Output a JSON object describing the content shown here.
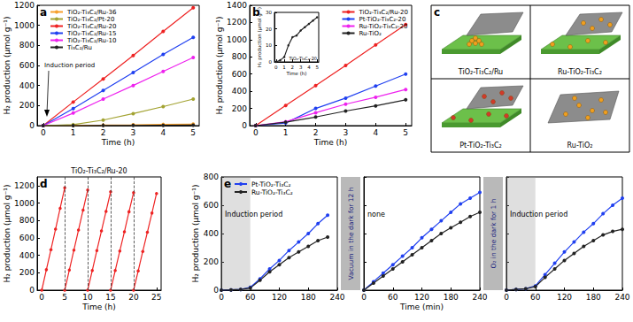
{
  "chart_data": [
    {
      "panel": "a",
      "type": "line",
      "xlabel": "Time (h)",
      "ylabel": "H₂ production (μmol g⁻¹)",
      "x": [
        0,
        1,
        2,
        3,
        4,
        5
      ],
      "xlim": [
        -0.2,
        5.2
      ],
      "xticks": [
        0,
        1,
        2,
        3,
        4,
        5
      ],
      "ylim": [
        0,
        1200
      ],
      "yticks": [
        0,
        200,
        400,
        600,
        800,
        1000,
        1200
      ],
      "grid": false,
      "legend": "upper left",
      "marker": "circle",
      "annotation": "Induction period",
      "series": [
        {
          "name": "TiO₂-Ti₃C₂/Ru-36",
          "color": "#f7a02c",
          "values": [
            0,
            3,
            5,
            8,
            12,
            15
          ]
        },
        {
          "name": "TiO₂-Ti₃C₂/Pt-20",
          "color": "#a3a332",
          "values": [
            0,
            10,
            55,
            120,
            190,
            265
          ]
        },
        {
          "name": "TiO₂-Ti₃C₂/Ru-20",
          "color": "#ee2222",
          "values": [
            0,
            235,
            465,
            700,
            940,
            1175
          ]
        },
        {
          "name": "TiO₂-Ti₃C₂/Ru-15",
          "color": "#2040f0",
          "values": [
            0,
            170,
            350,
            530,
            710,
            880
          ]
        },
        {
          "name": "TiO₂-Ti₃C₂/Ru-10",
          "color": "#ee22ee",
          "values": [
            0,
            125,
            265,
            400,
            540,
            680
          ]
        },
        {
          "name": "Ti₃C₂/Ru",
          "color": "#222222",
          "values": [
            0,
            0,
            1,
            2,
            3,
            5
          ]
        }
      ]
    },
    {
      "panel": "b",
      "type": "line",
      "xlabel": "Time (h)",
      "ylabel": "H₂ production (μmol g⁻¹)",
      "x": [
        0,
        1,
        2,
        3,
        4,
        5
      ],
      "xlim": [
        -0.2,
        5.2
      ],
      "xticks": [
        0,
        1,
        2,
        3,
        4,
        5
      ],
      "ylim": [
        0,
        1400
      ],
      "yticks": [
        0,
        200,
        400,
        600,
        800,
        1000,
        1200,
        1400
      ],
      "grid": false,
      "legend": "upper right",
      "marker": "circle",
      "series": [
        {
          "name": "TiO₂-Ti₃C₂/Ru-20",
          "color": "#ee2222",
          "values": [
            0,
            235,
            465,
            700,
            940,
            1175
          ]
        },
        {
          "name": "Pt-TiO₂-Ti₃C₂-20",
          "color": "#2040f0",
          "values": [
            0,
            30,
            200,
            320,
            460,
            600
          ]
        },
        {
          "name": "Ru-TiO₂-Ti₃C₂-20",
          "color": "#ee22ee",
          "values": [
            0,
            45,
            150,
            250,
            330,
            420
          ]
        },
        {
          "name": "Ru-TiO₂",
          "color": "#222222",
          "values": [
            0,
            40,
            100,
            170,
            230,
            300
          ]
        }
      ]
    },
    {
      "type": "line",
      "xlabel": "Time (h)",
      "ylabel": "H₂ production (μmol g⁻¹)",
      "annotation": "TiO₂-Ti₃C₂-20",
      "x": [
        0,
        0.5,
        1,
        1.5,
        2,
        2.5,
        3,
        3.5,
        4,
        4.5,
        5
      ],
      "xlim": [
        -0.2,
        5.2
      ],
      "xticks": [
        0,
        1,
        2,
        3,
        4,
        5
      ],
      "ylim": [
        0,
        30
      ],
      "yticks": [
        0,
        10,
        20,
        30
      ],
      "grid": false,
      "marker": "circle",
      "color": "#222222",
      "values": [
        0,
        1,
        3,
        10,
        15,
        16,
        19,
        21,
        23,
        25,
        27
      ]
    },
    {
      "panel": "d",
      "type": "line",
      "xlabel": "Time (h)",
      "ylabel": "H₂ production (μmol g⁻¹)",
      "annotation": "TiO₂-Ti₃C₂/Ru-20",
      "x": [
        0,
        1,
        2,
        3,
        4,
        5,
        null,
        5,
        6,
        7,
        8,
        9,
        10,
        null,
        10,
        11,
        12,
        13,
        14,
        15,
        null,
        15,
        16,
        17,
        18,
        19,
        20,
        null,
        20,
        21,
        22,
        23,
        24,
        25
      ],
      "values": [
        0,
        235,
        465,
        700,
        940,
        1175,
        null,
        0,
        230,
        460,
        690,
        920,
        1150,
        null,
        0,
        225,
        455,
        680,
        905,
        1130,
        null,
        0,
        225,
        450,
        670,
        900,
        1120,
        null,
        0,
        220,
        445,
        665,
        885,
        1110
      ],
      "color": "#ee2222",
      "marker": "circle",
      "dividers": [
        5,
        10,
        15,
        20
      ],
      "xlim": [
        -1,
        26
      ],
      "xticks": [
        0,
        5,
        10,
        15,
        20,
        25
      ],
      "ylim": [
        0,
        1300
      ],
      "yticks": [
        0,
        200,
        400,
        600,
        800,
        1000,
        1200
      ],
      "grid": false
    },
    {
      "panel": "e",
      "type": "line",
      "xlabel": "Time (min)",
      "ylabel": "H₂ production (μmol g⁻¹)",
      "xlim": [
        0,
        240
      ],
      "xticks": [
        0,
        60,
        120,
        180,
        240
      ],
      "ylim": [
        0,
        800
      ],
      "yticks": [
        0,
        200,
        400,
        600,
        800
      ],
      "grid": false,
      "legend": "upper left",
      "marker": "circle",
      "gaps": [
        "Vacuum in the dark for 12 h",
        "O₂ in the dark for 1 h"
      ],
      "segments": [
        {
          "annotation": "Induction period",
          "induction_period": [
            0,
            60
          ],
          "x": [
            0,
            20,
            40,
            60,
            80,
            100,
            120,
            140,
            160,
            180,
            200,
            220
          ],
          "series": [
            {
              "name": "Pt-TiO₂-Ti₃C₂",
              "color": "#2040f0",
              "values": [
                0,
                2,
                5,
                20,
                80,
                150,
                210,
                280,
                340,
                400,
                470,
                530
              ]
            },
            {
              "name": "Ru-TiO₂-Ti₃C₂",
              "color": "#222222",
              "values": [
                0,
                2,
                5,
                15,
                70,
                130,
                180,
                230,
                270,
                310,
                350,
                375
              ]
            }
          ]
        },
        {
          "annotation": "none",
          "x": [
            0,
            20,
            40,
            60,
            80,
            100,
            120,
            140,
            160,
            180,
            200,
            220,
            240
          ],
          "series": [
            {
              "name": "Pt-TiO₂-Ti₃C₂",
              "color": "#2040f0",
              "values": [
                0,
                60,
                120,
                180,
                240,
                300,
                370,
                430,
                490,
                550,
                610,
                650,
                690
              ]
            },
            {
              "name": "Ru-TiO₂-Ti₃C₂",
              "color": "#222222",
              "values": [
                0,
                50,
                100,
                150,
                200,
                250,
                300,
                350,
                400,
                440,
                480,
                520,
                550
              ]
            }
          ]
        },
        {
          "annotation": "Induction period",
          "induction_period": [
            0,
            60
          ],
          "x": [
            0,
            20,
            40,
            60,
            80,
            100,
            120,
            140,
            160,
            180,
            200,
            220,
            240
          ],
          "series": [
            {
              "name": "Pt-TiO₂-Ti₃C₂",
              "color": "#2040f0",
              "values": [
                0,
                5,
                10,
                30,
                110,
                190,
                270,
                340,
                410,
                470,
                540,
                600,
                650
              ]
            },
            {
              "name": "Ru-TiO₂-Ti₃C₂",
              "color": "#222222",
              "values": [
                0,
                5,
                10,
                25,
                90,
                150,
                210,
                260,
                310,
                350,
                390,
                415,
                430
              ]
            }
          ]
        }
      ]
    }
  ],
  "schematic": {
    "panel": "c",
    "labels": [
      "TiO₂-Ti₃C₂/Ru",
      "Ru-TiO₂-Ti₃C₂",
      "Pt-TiO₂-Ti₃C₂",
      "Ru-TiO₂"
    ]
  }
}
